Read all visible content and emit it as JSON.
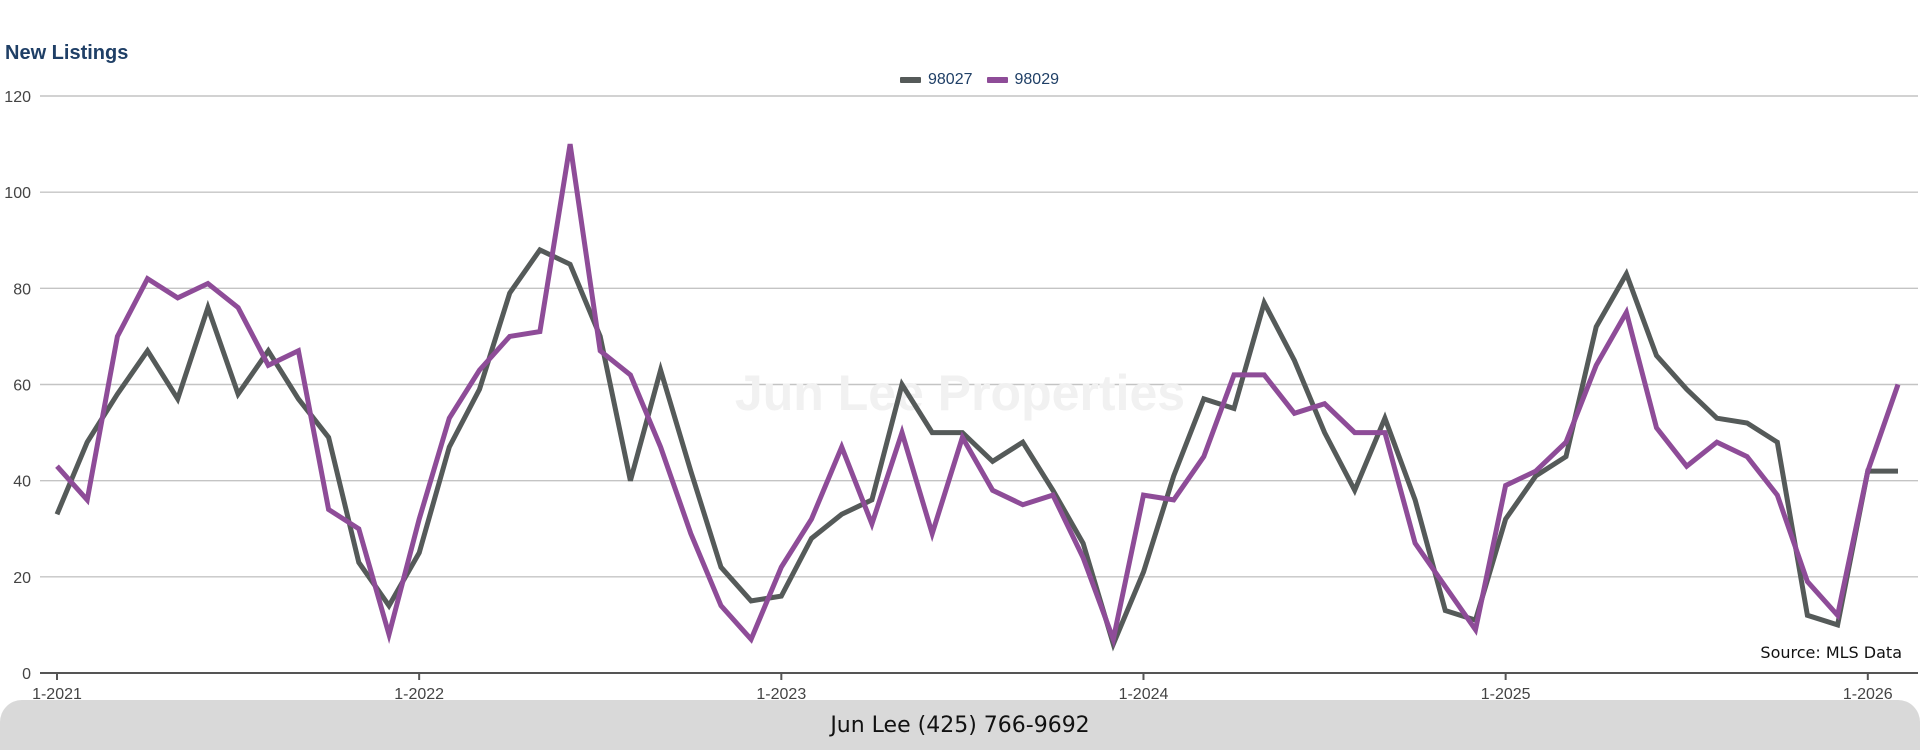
{
  "chart_data": {
    "type": "line",
    "title": "New Listings",
    "xlabel": "",
    "ylabel": "",
    "ylim": [
      0,
      120
    ],
    "yticks": [
      0,
      20,
      40,
      60,
      80,
      100,
      120
    ],
    "xticks": [
      "1-2021",
      "1-2022",
      "1-2023",
      "1-2024",
      "1-2025",
      "1-2026"
    ],
    "x_start": "1-2021",
    "grid": true,
    "legend_position": "top-center",
    "series": [
      {
        "name": "98027",
        "color": "#555a59",
        "values": [
          33,
          48,
          58,
          67,
          57,
          76,
          58,
          67,
          57,
          49,
          23,
          14,
          25,
          47,
          59,
          79,
          88,
          85,
          70,
          40,
          63,
          42,
          22,
          15,
          16,
          28,
          33,
          36,
          60,
          50,
          50,
          44,
          48,
          38,
          27,
          6,
          21,
          41,
          57,
          55,
          77,
          65,
          50,
          38,
          53,
          36,
          13,
          11,
          32,
          41,
          45,
          72,
          83,
          66,
          59,
          53,
          52,
          48,
          12,
          10,
          42,
          42
        ]
      },
      {
        "name": "98029",
        "color": "#8e4c98",
        "values": [
          43,
          36,
          70,
          82,
          78,
          81,
          76,
          64,
          67,
          34,
          30,
          8,
          32,
          53,
          63,
          70,
          71,
          110,
          67,
          62,
          47,
          29,
          14,
          7,
          22,
          32,
          47,
          31,
          50,
          29,
          49,
          38,
          35,
          37,
          24,
          7,
          37,
          36,
          45,
          62,
          62,
          54,
          56,
          50,
          50,
          27,
          18,
          9,
          39,
          42,
          48,
          64,
          75,
          51,
          43,
          48,
          45,
          37,
          19,
          12,
          42,
          60
        ]
      }
    ]
  },
  "watermark": "Jun Lee Properties",
  "source_note": "Source: MLS Data",
  "footer": {
    "contact": "Jun Lee (425) 766-9692"
  }
}
